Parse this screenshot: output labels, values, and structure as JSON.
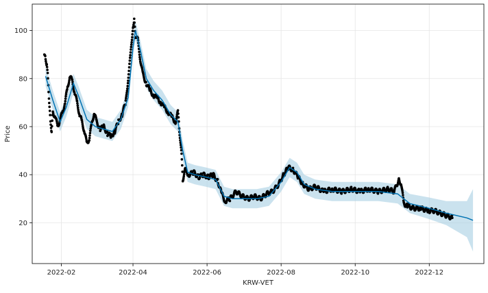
{
  "chart_data": {
    "type": "line",
    "xlabel": "KRW-VET",
    "ylabel": "Price",
    "x_ticks": [
      "2022-02",
      "2022-04",
      "2022-06",
      "2022-08",
      "2022-10",
      "2022-12"
    ],
    "y_ticks": [
      20,
      40,
      60,
      80,
      100
    ],
    "xlim": [
      "2022-01-08",
      "2023-01-15"
    ],
    "ylim": [
      3,
      111
    ],
    "grid": true,
    "legend": "none",
    "colors": {
      "actual": "#000000",
      "forecast": "#0072B2",
      "interval": "#A6CEE3"
    },
    "series": [
      {
        "role": "forecast",
        "points": [
          [
            "2022-01-19",
            81
          ],
          [
            "2022-01-25",
            71
          ],
          [
            "2022-01-31",
            62
          ],
          [
            "2022-02-05",
            68
          ],
          [
            "2022-02-11",
            78
          ],
          [
            "2022-02-15",
            73
          ],
          [
            "2022-02-22",
            63
          ],
          [
            "2022-03-01",
            60
          ],
          [
            "2022-03-08",
            59
          ],
          [
            "2022-03-15",
            58
          ],
          [
            "2022-03-22",
            63
          ],
          [
            "2022-03-28",
            72
          ],
          [
            "2022-04-01",
            93
          ],
          [
            "2022-04-03",
            100
          ],
          [
            "2022-04-07",
            92
          ],
          [
            "2022-04-12",
            80
          ],
          [
            "2022-04-18",
            75
          ],
          [
            "2022-04-25",
            71
          ],
          [
            "2022-05-02",
            65
          ],
          [
            "2022-05-08",
            62
          ],
          [
            "2022-05-12",
            50
          ],
          [
            "2022-05-16",
            41
          ],
          [
            "2022-05-22",
            40
          ],
          [
            "2022-05-31",
            39
          ],
          [
            "2022-06-08",
            38
          ],
          [
            "2022-06-15",
            31
          ],
          [
            "2022-06-22",
            30
          ],
          [
            "2022-07-01",
            30
          ],
          [
            "2022-07-12",
            30
          ],
          [
            "2022-07-22",
            31
          ],
          [
            "2022-08-01",
            37
          ],
          [
            "2022-08-08",
            43
          ],
          [
            "2022-08-14",
            41
          ],
          [
            "2022-08-20",
            36
          ],
          [
            "2022-08-29",
            34
          ],
          [
            "2022-09-12",
            33
          ],
          [
            "2022-10-01",
            33
          ],
          [
            "2022-10-20",
            33
          ],
          [
            "2022-11-05",
            32
          ],
          [
            "2022-11-15",
            28
          ],
          [
            "2022-12-01",
            26
          ],
          [
            "2022-12-15",
            24
          ],
          [
            "2023-01-01",
            22
          ],
          [
            "2023-01-06",
            21
          ]
        ],
        "lower": [
          [
            "2022-01-19",
            77
          ],
          [
            "2022-01-25",
            67
          ],
          [
            "2022-01-31",
            58
          ],
          [
            "2022-02-05",
            64
          ],
          [
            "2022-02-11",
            74
          ],
          [
            "2022-02-15",
            69
          ],
          [
            "2022-02-22",
            59
          ],
          [
            "2022-03-01",
            56
          ],
          [
            "2022-03-08",
            55
          ],
          [
            "2022-03-15",
            54
          ],
          [
            "2022-03-22",
            59
          ],
          [
            "2022-03-28",
            68
          ],
          [
            "2022-04-01",
            89
          ],
          [
            "2022-04-03",
            96
          ],
          [
            "2022-04-07",
            88
          ],
          [
            "2022-04-12",
            76
          ],
          [
            "2022-04-18",
            71
          ],
          [
            "2022-04-25",
            67
          ],
          [
            "2022-05-02",
            61
          ],
          [
            "2022-05-08",
            58
          ],
          [
            "2022-05-12",
            46
          ],
          [
            "2022-05-16",
            37
          ],
          [
            "2022-05-22",
            36
          ],
          [
            "2022-05-31",
            35
          ],
          [
            "2022-06-08",
            34
          ],
          [
            "2022-06-15",
            27
          ],
          [
            "2022-06-22",
            26
          ],
          [
            "2022-07-01",
            26
          ],
          [
            "2022-07-12",
            26
          ],
          [
            "2022-07-22",
            27
          ],
          [
            "2022-08-01",
            33
          ],
          [
            "2022-08-08",
            39
          ],
          [
            "2022-08-14",
            37
          ],
          [
            "2022-08-20",
            32
          ],
          [
            "2022-08-29",
            30
          ],
          [
            "2022-09-12",
            29
          ],
          [
            "2022-10-01",
            29
          ],
          [
            "2022-10-20",
            29
          ],
          [
            "2022-11-05",
            28
          ],
          [
            "2022-11-15",
            24
          ],
          [
            "2022-12-01",
            21.5
          ],
          [
            "2022-12-15",
            19
          ],
          [
            "2023-01-01",
            14
          ],
          [
            "2023-01-06",
            8
          ]
        ],
        "upper": [
          [
            "2022-01-19",
            85
          ],
          [
            "2022-01-25",
            75
          ],
          [
            "2022-01-31",
            66
          ],
          [
            "2022-02-05",
            72
          ],
          [
            "2022-02-11",
            82
          ],
          [
            "2022-02-15",
            77
          ],
          [
            "2022-02-22",
            67
          ],
          [
            "2022-03-01",
            64
          ],
          [
            "2022-03-08",
            63
          ],
          [
            "2022-03-15",
            62
          ],
          [
            "2022-03-22",
            67
          ],
          [
            "2022-03-28",
            76
          ],
          [
            "2022-04-01",
            97
          ],
          [
            "2022-04-03",
            104
          ],
          [
            "2022-04-07",
            96
          ],
          [
            "2022-04-12",
            84
          ],
          [
            "2022-04-18",
            79
          ],
          [
            "2022-04-25",
            75
          ],
          [
            "2022-05-02",
            69
          ],
          [
            "2022-05-08",
            66
          ],
          [
            "2022-05-12",
            54
          ],
          [
            "2022-05-16",
            45
          ],
          [
            "2022-05-22",
            44
          ],
          [
            "2022-05-31",
            43
          ],
          [
            "2022-06-08",
            42
          ],
          [
            "2022-06-15",
            35
          ],
          [
            "2022-06-22",
            34
          ],
          [
            "2022-07-01",
            34
          ],
          [
            "2022-07-12",
            34
          ],
          [
            "2022-07-22",
            35
          ],
          [
            "2022-08-01",
            41
          ],
          [
            "2022-08-08",
            47
          ],
          [
            "2022-08-14",
            45
          ],
          [
            "2022-08-20",
            40
          ],
          [
            "2022-08-29",
            38
          ],
          [
            "2022-09-12",
            37
          ],
          [
            "2022-10-01",
            37
          ],
          [
            "2022-10-20",
            37
          ],
          [
            "2022-11-05",
            36
          ],
          [
            "2022-11-15",
            32
          ],
          [
            "2022-12-01",
            30.5
          ],
          [
            "2022-12-15",
            29
          ],
          [
            "2023-01-01",
            29
          ],
          [
            "2023-01-06",
            34
          ]
        ]
      },
      {
        "role": "actual",
        "points": [
          [
            "2022-01-18",
            90
          ],
          [
            "2022-01-19",
            88
          ],
          [
            "2022-01-20",
            86
          ],
          [
            "2022-01-21",
            80
          ],
          [
            "2022-01-22",
            70
          ],
          [
            "2022-01-23",
            62
          ],
          [
            "2022-01-24",
            58
          ],
          [
            "2022-01-25",
            66
          ],
          [
            "2022-01-27",
            64
          ],
          [
            "2022-01-29",
            60
          ],
          [
            "2022-01-31",
            63
          ],
          [
            "2022-02-02",
            66
          ],
          [
            "2022-02-04",
            70
          ],
          [
            "2022-02-06",
            76
          ],
          [
            "2022-02-08",
            81
          ],
          [
            "2022-02-10",
            79
          ],
          [
            "2022-02-12",
            74
          ],
          [
            "2022-02-14",
            70
          ],
          [
            "2022-02-16",
            65
          ],
          [
            "2022-02-18",
            62
          ],
          [
            "2022-02-20",
            58
          ],
          [
            "2022-02-22",
            53
          ],
          [
            "2022-02-24",
            55
          ],
          [
            "2022-02-26",
            61
          ],
          [
            "2022-02-28",
            66
          ],
          [
            "2022-03-02",
            62
          ],
          [
            "2022-03-05",
            59
          ],
          [
            "2022-03-08",
            60
          ],
          [
            "2022-03-11",
            57
          ],
          [
            "2022-03-14",
            56
          ],
          [
            "2022-03-17",
            58
          ],
          [
            "2022-03-20",
            62
          ],
          [
            "2022-03-23",
            65
          ],
          [
            "2022-03-26",
            70
          ],
          [
            "2022-03-28",
            80
          ],
          [
            "2022-03-30",
            90
          ],
          [
            "2022-04-01",
            102
          ],
          [
            "2022-04-02",
            104
          ],
          [
            "2022-04-03",
            98
          ],
          [
            "2022-04-05",
            96
          ],
          [
            "2022-04-07",
            88
          ],
          [
            "2022-04-09",
            82
          ],
          [
            "2022-04-12",
            78
          ],
          [
            "2022-04-15",
            75
          ],
          [
            "2022-04-18",
            73
          ],
          [
            "2022-04-21",
            72
          ],
          [
            "2022-04-24",
            70
          ],
          [
            "2022-04-27",
            68
          ],
          [
            "2022-04-30",
            66
          ],
          [
            "2022-05-03",
            64
          ],
          [
            "2022-05-06",
            62
          ],
          [
            "2022-05-08",
            66
          ],
          [
            "2022-05-09",
            60
          ],
          [
            "2022-05-11",
            48
          ],
          [
            "2022-05-12",
            38
          ],
          [
            "2022-05-14",
            42
          ],
          [
            "2022-05-17",
            40
          ],
          [
            "2022-05-21",
            41
          ],
          [
            "2022-05-25",
            39
          ],
          [
            "2022-05-29",
            40
          ],
          [
            "2022-06-02",
            39
          ],
          [
            "2022-06-06",
            40
          ],
          [
            "2022-06-10",
            37
          ],
          [
            "2022-06-13",
            32
          ],
          [
            "2022-06-16",
            29
          ],
          [
            "2022-06-20",
            30
          ],
          [
            "2022-06-25",
            33
          ],
          [
            "2022-06-30",
            31
          ],
          [
            "2022-07-05",
            30
          ],
          [
            "2022-07-10",
            31
          ],
          [
            "2022-07-15",
            30
          ],
          [
            "2022-07-20",
            32
          ],
          [
            "2022-07-25",
            33
          ],
          [
            "2022-07-30",
            36
          ],
          [
            "2022-08-03",
            40
          ],
          [
            "2022-08-07",
            43
          ],
          [
            "2022-08-11",
            42
          ],
          [
            "2022-08-15",
            39
          ],
          [
            "2022-08-19",
            36
          ],
          [
            "2022-08-24",
            34
          ],
          [
            "2022-08-29",
            35
          ],
          [
            "2022-09-05",
            33
          ],
          [
            "2022-09-12",
            34
          ],
          [
            "2022-09-20",
            33
          ],
          [
            "2022-09-28",
            34
          ],
          [
            "2022-10-05",
            33
          ],
          [
            "2022-10-12",
            34
          ],
          [
            "2022-10-20",
            33
          ],
          [
            "2022-10-28",
            34
          ],
          [
            "2022-11-02",
            33
          ],
          [
            "2022-11-06",
            38
          ],
          [
            "2022-11-08",
            36
          ],
          [
            "2022-11-10",
            28
          ],
          [
            "2022-11-13",
            27
          ],
          [
            "2022-11-18",
            26
          ],
          [
            "2022-11-24",
            26
          ],
          [
            "2022-11-30",
            25
          ],
          [
            "2022-12-05",
            25
          ],
          [
            "2022-12-10",
            24
          ],
          [
            "2022-12-15",
            23
          ],
          [
            "2022-12-20",
            22
          ]
        ]
      }
    ]
  }
}
